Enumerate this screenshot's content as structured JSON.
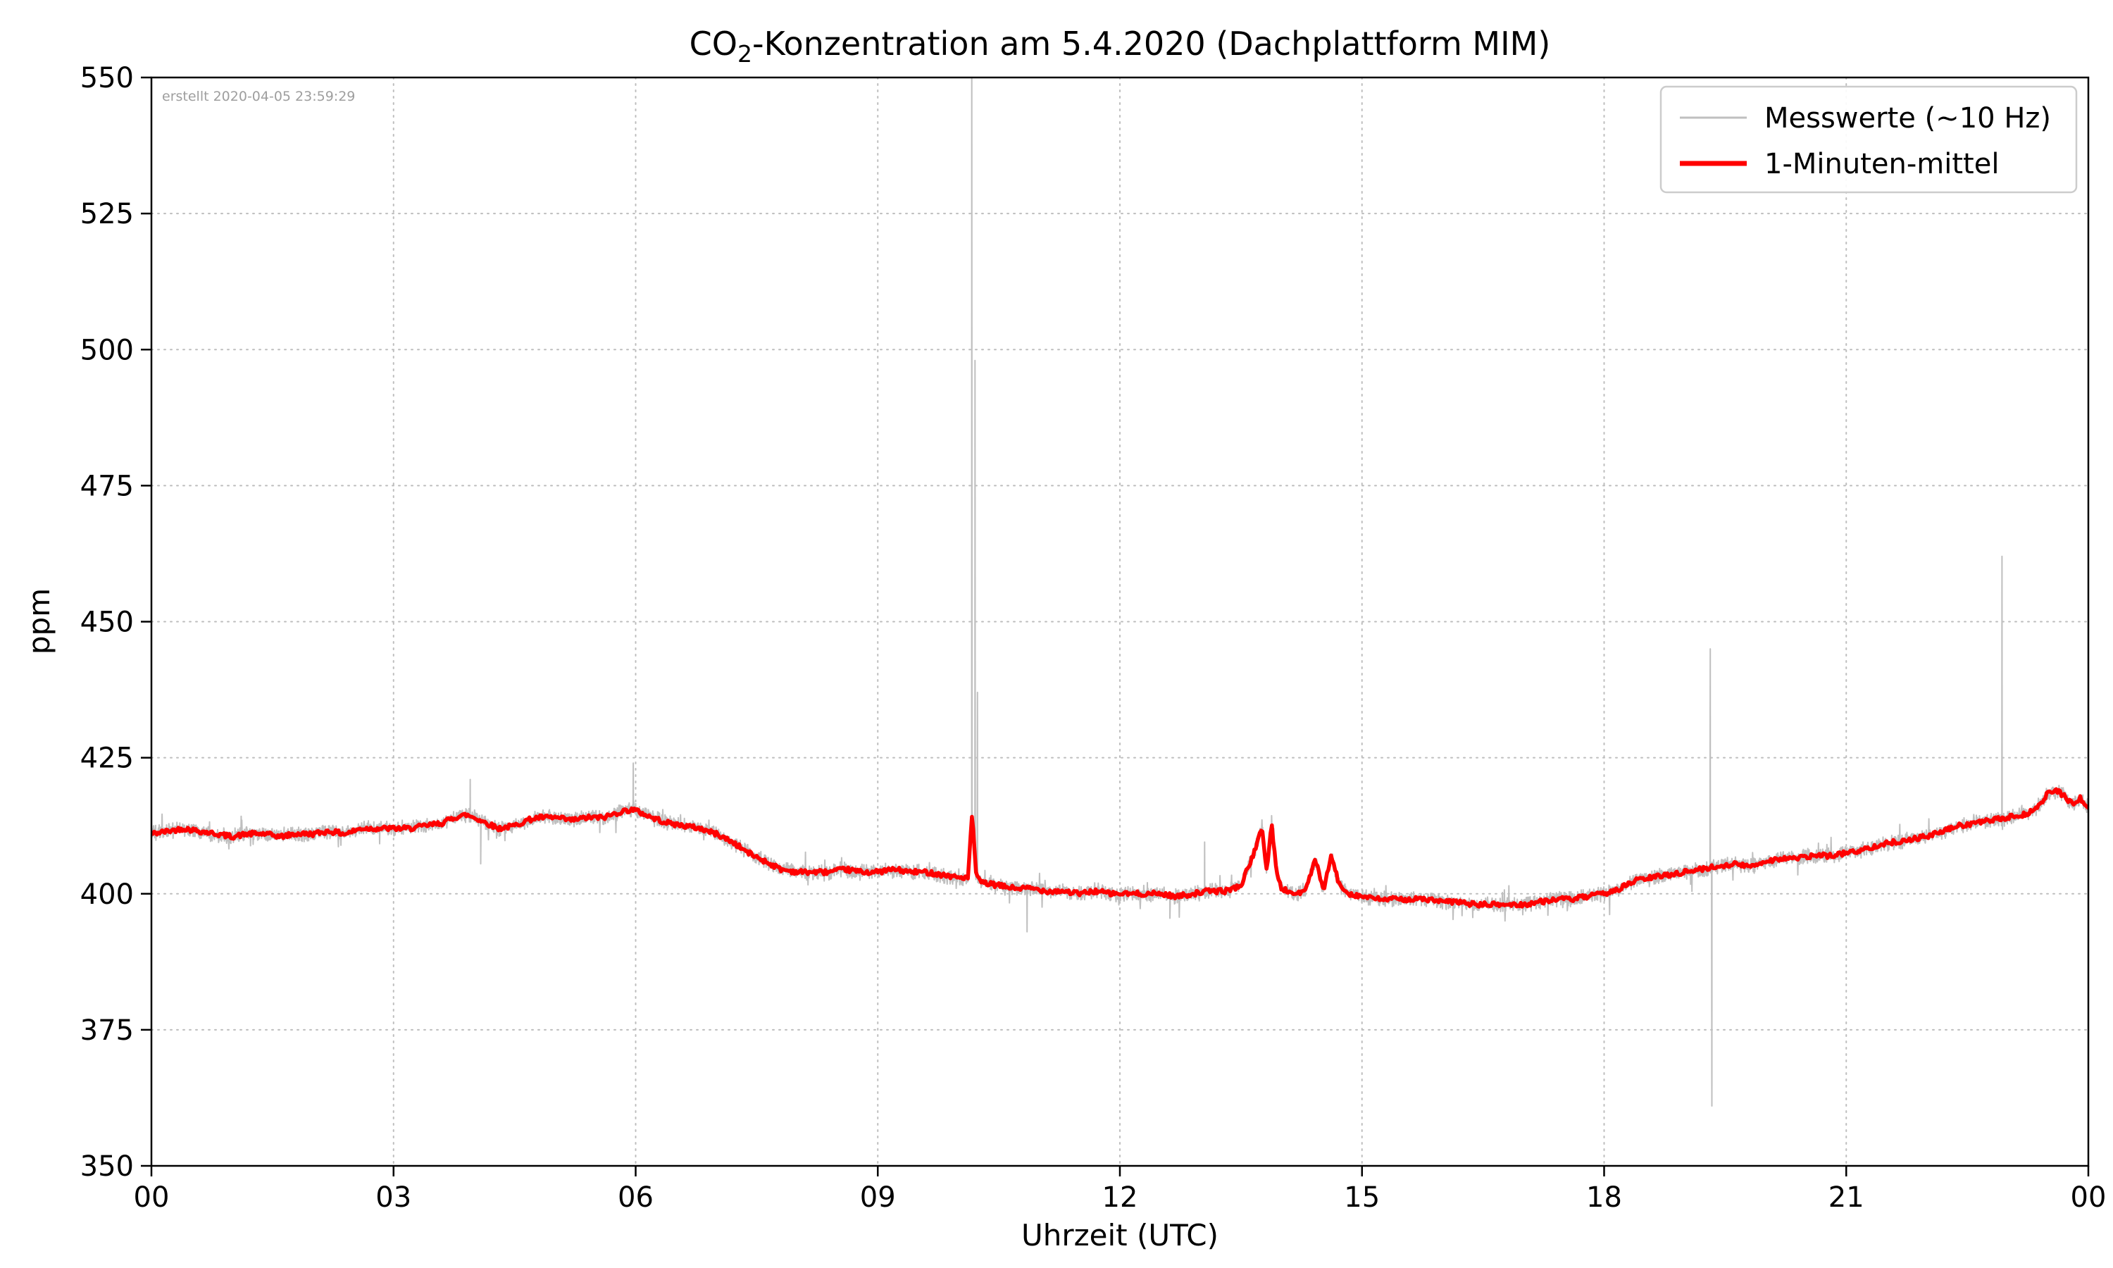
{
  "chart_data": {
    "type": "line",
    "title": "CO₂-Konzentration am 5.4.2020 (Dachplattform MIM)",
    "title_parts": {
      "prefix": "CO",
      "subscript": "2",
      "suffix": "-Konzentration am 5.4.2020 (Dachplattform MIM)"
    },
    "xlabel": "Uhrzeit (UTC)",
    "ylabel": "ppm",
    "annotation": "erstellt 2020-04-05 23:59:29",
    "xlim": [
      0,
      24
    ],
    "ylim": [
      350,
      550
    ],
    "x_ticks": {
      "positions": [
        0,
        3,
        6,
        9,
        12,
        15,
        18,
        21,
        24
      ],
      "labels": [
        "00",
        "03",
        "06",
        "09",
        "12",
        "15",
        "18",
        "21",
        "00"
      ]
    },
    "y_ticks": {
      "positions": [
        350,
        375,
        400,
        425,
        450,
        475,
        500,
        525,
        550
      ],
      "labels": [
        "350",
        "375",
        "400",
        "425",
        "450",
        "475",
        "500",
        "525",
        "550"
      ]
    },
    "grid": "dotted",
    "colors": {
      "raw": "#bfbfbf",
      "mean": "#ff0000",
      "grid": "#bdbdbd",
      "axis": "#000000",
      "annotation": "#9e9e9e",
      "legend_border": "#cccccc"
    },
    "legend": {
      "position": "upper right",
      "entries": [
        {
          "label": "Messwerte (~10 Hz)",
          "color": "#bfbfbf",
          "line_width": 3
        },
        {
          "label": "1-Minuten-mittel",
          "color": "#ff0000",
          "line_width": 7
        }
      ]
    },
    "series": [
      {
        "name": "Messwerte (~10 Hz)",
        "color": "#bfbfbf",
        "derivation": "minute_mean_plus_noise",
        "noise_ppm": 1.6,
        "spikes": [
          {
            "t": 3.95,
            "v": 421
          },
          {
            "t": 4.08,
            "v": 405.5
          },
          {
            "t": 5.97,
            "v": 424
          },
          {
            "t": 10.165,
            "v": 558
          },
          {
            "t": 10.205,
            "v": 498
          },
          {
            "t": 10.235,
            "v": 437
          },
          {
            "t": 10.85,
            "v": 393
          },
          {
            "t": 12.62,
            "v": 395.5
          },
          {
            "t": 13.05,
            "v": 409.5
          },
          {
            "t": 19.315,
            "v": 445
          },
          {
            "t": 19.335,
            "v": 361
          },
          {
            "t": 22.93,
            "v": 462
          }
        ]
      },
      {
        "name": "1-Minuten-mittel",
        "color": "#ff0000",
        "points": [
          [
            0.0,
            411
          ],
          [
            0.2,
            411.5
          ],
          [
            0.4,
            412
          ],
          [
            0.6,
            411.5
          ],
          [
            0.8,
            411
          ],
          [
            1.0,
            410.5
          ],
          [
            1.2,
            411
          ],
          [
            1.4,
            411
          ],
          [
            1.6,
            410.5
          ],
          [
            1.8,
            411
          ],
          [
            2.0,
            411
          ],
          [
            2.2,
            411.5
          ],
          [
            2.4,
            411
          ],
          [
            2.6,
            412
          ],
          [
            2.8,
            412
          ],
          [
            3.0,
            412
          ],
          [
            3.2,
            412
          ],
          [
            3.4,
            412.5
          ],
          [
            3.6,
            413
          ],
          [
            3.75,
            414
          ],
          [
            3.9,
            414.5
          ],
          [
            4.0,
            414
          ],
          [
            4.15,
            413
          ],
          [
            4.3,
            412
          ],
          [
            4.5,
            412.5
          ],
          [
            4.65,
            413.5
          ],
          [
            4.8,
            414
          ],
          [
            5.0,
            414
          ],
          [
            5.2,
            413.5
          ],
          [
            5.4,
            414
          ],
          [
            5.6,
            414
          ],
          [
            5.8,
            415
          ],
          [
            5.95,
            415.5
          ],
          [
            6.05,
            415
          ],
          [
            6.2,
            414
          ],
          [
            6.4,
            413
          ],
          [
            6.6,
            412.5
          ],
          [
            6.8,
            412
          ],
          [
            7.0,
            411
          ],
          [
            7.2,
            409.5
          ],
          [
            7.4,
            407.5
          ],
          [
            7.6,
            406
          ],
          [
            7.8,
            404.5
          ],
          [
            8.0,
            404
          ],
          [
            8.2,
            404
          ],
          [
            8.4,
            404
          ],
          [
            8.6,
            404.5
          ],
          [
            8.8,
            404
          ],
          [
            9.0,
            404
          ],
          [
            9.2,
            404.5
          ],
          [
            9.4,
            404
          ],
          [
            9.6,
            404
          ],
          [
            9.8,
            403.5
          ],
          [
            10.0,
            403
          ],
          [
            10.12,
            403
          ],
          [
            10.17,
            415
          ],
          [
            10.22,
            403
          ],
          [
            10.3,
            402
          ],
          [
            10.5,
            401.5
          ],
          [
            10.7,
            401
          ],
          [
            10.9,
            401
          ],
          [
            11.1,
            400.5
          ],
          [
            11.3,
            400.5
          ],
          [
            11.5,
            400
          ],
          [
            11.7,
            400.5
          ],
          [
            11.9,
            400
          ],
          [
            12.1,
            400
          ],
          [
            12.3,
            400
          ],
          [
            12.5,
            400
          ],
          [
            12.7,
            399.5
          ],
          [
            12.9,
            400
          ],
          [
            13.1,
            400.5
          ],
          [
            13.3,
            400.5
          ],
          [
            13.5,
            401.5
          ],
          [
            13.62,
            406
          ],
          [
            13.7,
            409
          ],
          [
            13.76,
            412.5
          ],
          [
            13.82,
            404
          ],
          [
            13.88,
            413
          ],
          [
            13.94,
            404
          ],
          [
            14.0,
            401
          ],
          [
            14.15,
            400
          ],
          [
            14.3,
            400.5
          ],
          [
            14.42,
            406.5
          ],
          [
            14.52,
            400.5
          ],
          [
            14.62,
            407
          ],
          [
            14.72,
            401.5
          ],
          [
            14.85,
            400
          ],
          [
            15.0,
            399.5
          ],
          [
            15.2,
            399
          ],
          [
            15.4,
            399
          ],
          [
            15.6,
            399
          ],
          [
            15.8,
            399
          ],
          [
            16.0,
            398.5
          ],
          [
            16.2,
            398.5
          ],
          [
            16.4,
            398
          ],
          [
            16.6,
            398
          ],
          [
            16.8,
            398
          ],
          [
            17.0,
            398
          ],
          [
            17.2,
            398.5
          ],
          [
            17.4,
            399
          ],
          [
            17.6,
            399
          ],
          [
            17.8,
            399.5
          ],
          [
            18.0,
            400
          ],
          [
            18.2,
            401
          ],
          [
            18.4,
            402.5
          ],
          [
            18.6,
            403
          ],
          [
            18.8,
            403.5
          ],
          [
            19.0,
            404
          ],
          [
            19.2,
            404.5
          ],
          [
            19.4,
            405
          ],
          [
            19.6,
            405.5
          ],
          [
            19.8,
            405
          ],
          [
            20.0,
            406
          ],
          [
            20.2,
            406.5
          ],
          [
            20.4,
            406.5
          ],
          [
            20.6,
            407
          ],
          [
            20.8,
            407
          ],
          [
            21.0,
            407.5
          ],
          [
            21.2,
            408
          ],
          [
            21.4,
            409
          ],
          [
            21.6,
            409.5
          ],
          [
            21.8,
            410
          ],
          [
            22.0,
            410.5
          ],
          [
            22.2,
            411.5
          ],
          [
            22.4,
            412.5
          ],
          [
            22.6,
            413
          ],
          [
            22.8,
            413.5
          ],
          [
            23.0,
            414
          ],
          [
            23.2,
            414.5
          ],
          [
            23.35,
            415.5
          ],
          [
            23.5,
            418.5
          ],
          [
            23.6,
            419
          ],
          [
            23.7,
            418
          ],
          [
            23.8,
            416.5
          ],
          [
            23.9,
            417.5
          ],
          [
            24.0,
            416
          ]
        ]
      }
    ]
  }
}
